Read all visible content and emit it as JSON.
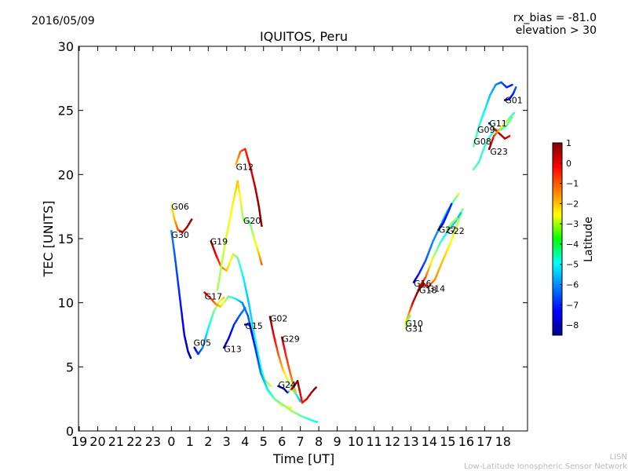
{
  "header": {
    "date": "2016/05/09",
    "rx_bias": "rx_bias = -81.0",
    "elevation": "elevation > 30"
  },
  "footer": {
    "org_short": "LISN",
    "org_long": "Low-Latitude Ionospheric Sensor Network"
  },
  "chart_data": {
    "type": "scatter",
    "title": "IQUITOS, Peru",
    "xlabel": "Time [UT]",
    "ylabel": "TEC [UNITS]",
    "x_start_hour": 19,
    "x_tick_labels": [
      "19",
      "20",
      "21",
      "22",
      "23",
      "0",
      "1",
      "2",
      "3",
      "4",
      "5",
      "6",
      "7",
      "8",
      "9",
      "10",
      "11",
      "12",
      "13",
      "14",
      "15",
      "16",
      "17",
      "18"
    ],
    "ylim": [
      0,
      30
    ],
    "y_ticks": [
      0,
      5,
      10,
      15,
      20,
      25,
      30
    ],
    "grid": false,
    "colorbar": {
      "label": "Latitude",
      "range": [
        -8.5,
        1
      ],
      "ticks": [
        1,
        0,
        -1,
        -2,
        -3,
        -4,
        -5,
        -6,
        -7,
        -8
      ],
      "tick_labels": [
        "1",
        "0",
        "−1",
        "−2",
        "−3",
        "−4",
        "−5",
        "−6",
        "−7",
        "−8"
      ]
    },
    "series": [
      {
        "name": "G06",
        "label_at": [
          0.0,
          17.5
        ],
        "points": [
          [
            0.0,
            17.6,
            -2.5
          ],
          [
            0.15,
            16.6,
            -2.0
          ],
          [
            0.35,
            15.7,
            -1.0
          ],
          [
            0.6,
            15.5,
            0.2
          ],
          [
            0.85,
            15.9,
            0.5
          ],
          [
            1.1,
            16.5,
            0.8
          ]
        ]
      },
      {
        "name": "G30",
        "label_at": [
          0.0,
          15.3
        ],
        "points": [
          [
            0.0,
            15.6,
            -6.0
          ],
          [
            0.2,
            13.5,
            -6.5
          ],
          [
            0.45,
            10.5,
            -7.0
          ],
          [
            0.7,
            7.5,
            -7.5
          ],
          [
            0.9,
            6.2,
            -8.0
          ],
          [
            1.05,
            5.7,
            -8.5
          ]
        ]
      },
      {
        "name": "G05",
        "label_at": [
          1.2,
          6.9
        ],
        "points": [
          [
            1.25,
            6.5,
            -7.5
          ],
          [
            1.45,
            6.0,
            -7.0
          ],
          [
            1.7,
            6.5,
            -6.0
          ],
          [
            2.0,
            8.0,
            -5.0
          ],
          [
            2.3,
            9.3,
            -4.0
          ],
          [
            2.55,
            10.0,
            -3.0
          ],
          [
            2.85,
            10.4,
            -2.0
          ]
        ]
      },
      {
        "name": "G13",
        "label_at": [
          2.85,
          6.4
        ],
        "points": [
          [
            2.85,
            6.5,
            -8.3
          ],
          [
            3.1,
            7.2,
            -7.5
          ],
          [
            3.4,
            8.3,
            -7.0
          ],
          [
            3.7,
            9.0,
            -6.5
          ],
          [
            4.0,
            9.6,
            -6.0
          ]
        ]
      },
      {
        "name": "G17",
        "label_at": [
          1.8,
          10.5
        ],
        "points": [
          [
            1.8,
            10.8,
            0.3
          ],
          [
            2.1,
            10.4,
            -0.5
          ],
          [
            2.4,
            9.9,
            -1.3
          ],
          [
            2.65,
            9.7,
            -2.0
          ],
          [
            2.9,
            10.1,
            -3.0
          ],
          [
            3.1,
            10.5,
            -4.0
          ],
          [
            3.5,
            10.3,
            -5.0
          ],
          [
            3.85,
            10.0,
            -6.0
          ],
          [
            4.15,
            9.0,
            -6.5
          ],
          [
            4.45,
            7.2,
            -6.0
          ],
          [
            4.75,
            5.2,
            -5.0
          ],
          [
            5.05,
            4.0,
            -4.0
          ],
          [
            5.4,
            3.5,
            -3.0
          ]
        ]
      },
      {
        "name": "G19",
        "label_at": [
          2.1,
          14.8
        ],
        "points": [
          [
            2.15,
            14.8,
            0.8
          ],
          [
            2.4,
            13.8,
            0.0
          ],
          [
            2.7,
            12.8,
            -1.0
          ],
          [
            3.0,
            12.5,
            -2.0
          ],
          [
            3.35,
            13.8,
            -3.0
          ],
          [
            3.6,
            13.5,
            -4.0
          ],
          [
            3.9,
            12.0,
            -5.0
          ],
          [
            4.2,
            10.0,
            -5.5
          ],
          [
            4.5,
            7.5,
            -5.0
          ],
          [
            4.85,
            5.0,
            -4.5
          ],
          [
            5.2,
            3.2,
            -4.0
          ],
          [
            5.6,
            2.5,
            -3.5
          ],
          [
            6.0,
            2.0,
            -3.0
          ],
          [
            6.5,
            1.8,
            -2.5
          ]
        ]
      },
      {
        "name": "G12",
        "label_at": [
          3.5,
          20.6
        ],
        "points": [
          [
            3.5,
            20.8,
            -2.0
          ],
          [
            3.75,
            21.8,
            -1.0
          ],
          [
            4.0,
            22.0,
            -0.5
          ],
          [
            4.3,
            20.5,
            0.0
          ],
          [
            4.55,
            19.0,
            0.5
          ],
          [
            4.75,
            17.5,
            0.8
          ],
          [
            4.9,
            16.0,
            1.0
          ]
        ]
      },
      {
        "name": "G20",
        "label_at": [
          3.9,
          16.4
        ],
        "points": [
          [
            2.5,
            11.0,
            -3.5
          ],
          [
            2.9,
            14.5,
            -3.0
          ],
          [
            3.3,
            17.5,
            -2.5
          ],
          [
            3.6,
            19.5,
            -2.0
          ],
          [
            3.9,
            16.5,
            -3.5
          ],
          [
            4.25,
            16.3,
            -4.0
          ],
          [
            4.5,
            15.0,
            -3.0
          ],
          [
            4.75,
            13.8,
            -2.0
          ],
          [
            4.9,
            13.0,
            -1.0
          ]
        ]
      },
      {
        "name": "G15",
        "label_at": [
          4.0,
          8.2
        ],
        "points": [
          [
            4.0,
            8.3,
            -8.0
          ],
          [
            4.25,
            8.3,
            -7.5
          ],
          [
            4.55,
            6.5,
            -7.0
          ],
          [
            4.85,
            4.5,
            -6.0
          ],
          [
            5.2,
            3.3,
            -5.0
          ],
          [
            5.6,
            2.5,
            -4.0
          ],
          [
            6.1,
            2.0,
            -3.5
          ],
          [
            6.6,
            1.5,
            -3.5
          ],
          [
            7.0,
            1.2,
            -4.0
          ],
          [
            7.5,
            0.9,
            -4.5
          ],
          [
            7.9,
            0.7,
            -5.0
          ]
        ]
      },
      {
        "name": "G02",
        "label_at": [
          5.35,
          8.8
        ],
        "points": [
          [
            5.35,
            8.9,
            1.0
          ],
          [
            5.55,
            7.5,
            0.0
          ],
          [
            5.8,
            6.0,
            -1.0
          ],
          [
            6.05,
            4.8,
            -2.0
          ],
          [
            6.3,
            4.0,
            -3.0
          ],
          [
            6.55,
            3.3,
            -4.0
          ],
          [
            6.8,
            2.8,
            -5.0
          ],
          [
            7.0,
            2.3,
            -5.5
          ]
        ]
      },
      {
        "name": "G29",
        "label_at": [
          6.0,
          7.2
        ],
        "points": [
          [
            6.0,
            7.3,
            0.5
          ],
          [
            6.2,
            6.0,
            -0.5
          ],
          [
            6.4,
            4.8,
            -1.0
          ],
          [
            6.6,
            3.7,
            -1.5
          ],
          [
            6.75,
            3.0,
            -2.0
          ]
        ]
      },
      {
        "name": "G24",
        "label_at": [
          5.8,
          3.6
        ],
        "points": [
          [
            5.8,
            3.5,
            -7.5
          ],
          [
            6.1,
            3.3,
            -8.0
          ],
          [
            6.3,
            3.0,
            -8.0
          ],
          [
            6.55,
            3.3,
            1.0
          ],
          [
            6.85,
            3.9,
            1.0
          ],
          [
            7.1,
            2.2,
            -0.5
          ],
          [
            7.35,
            2.5,
            0.0
          ],
          [
            7.6,
            3.0,
            0.5
          ],
          [
            7.85,
            3.4,
            1.0
          ]
        ]
      },
      {
        "name": "G10",
        "label_at": [
          12.7,
          8.4
        ],
        "points": [
          [
            12.7,
            8.4,
            -2.5
          ],
          [
            12.9,
            9.2,
            -1.5
          ],
          [
            13.1,
            10.0,
            0.0
          ],
          [
            13.35,
            10.8,
            0.8
          ],
          [
            13.55,
            11.3,
            1.0
          ]
        ]
      },
      {
        "name": "G31",
        "label_at": [
          12.7,
          8.0
        ],
        "points": [
          [
            12.7,
            8.0,
            -3.0
          ],
          [
            12.95,
            9.0,
            -4.0
          ]
        ]
      },
      {
        "name": "G16",
        "label_at": [
          13.15,
          11.5
        ],
        "points": [
          [
            13.15,
            11.6,
            -8.0
          ],
          [
            13.45,
            12.3,
            -7.0
          ],
          [
            13.8,
            13.3,
            -6.5
          ],
          [
            14.2,
            14.8,
            -6.0
          ],
          [
            14.6,
            16.0,
            -6.0
          ],
          [
            15.0,
            17.2,
            -5.5
          ],
          [
            15.35,
            18.0,
            -4.0
          ],
          [
            15.6,
            18.5,
            -3.0
          ]
        ]
      },
      {
        "name": "G14",
        "label_at": [
          13.9,
          11.1
        ],
        "points": [
          [
            13.4,
            11.0,
            1.0
          ],
          [
            13.7,
            11.5,
            0.5
          ],
          [
            13.9,
            11.2,
            -0.5
          ],
          [
            14.3,
            11.8,
            -1.5
          ],
          [
            14.7,
            13.2,
            -2.0
          ],
          [
            15.1,
            14.5,
            -2.5
          ],
          [
            15.5,
            16.0,
            -3.0
          ],
          [
            15.8,
            17.3,
            -4.0
          ]
        ]
      },
      {
        "name": "G18",
        "label_at": [
          13.45,
          11.0
        ],
        "points": [
          [
            13.45,
            11.2,
            0.8
          ],
          [
            13.8,
            12.0,
            -1.0
          ],
          [
            14.2,
            13.5,
            -3.0
          ],
          [
            14.6,
            14.7,
            -4.5
          ],
          [
            15.0,
            15.6,
            -5.0
          ],
          [
            15.4,
            16.3,
            -5.5
          ],
          [
            15.7,
            17.0,
            -5.5
          ]
        ]
      },
      {
        "name": "G27",
        "label_at": [
          14.5,
          15.7
        ],
        "points": [
          [
            14.5,
            15.7,
            -8.3
          ],
          [
            14.75,
            16.2,
            -7.5
          ],
          [
            15.0,
            17.0,
            -7.0
          ],
          [
            15.2,
            17.7,
            -7.0
          ]
        ]
      },
      {
        "name": "G22",
        "label_at": [
          14.95,
          15.6
        ],
        "points": [
          [
            14.95,
            15.7,
            -4.0
          ],
          [
            15.2,
            16.2,
            -3.5
          ],
          [
            15.5,
            16.6,
            -3.5
          ]
        ]
      },
      {
        "name": "G08",
        "label_at": [
          16.4,
          22.6
        ],
        "points": [
          [
            16.4,
            20.4,
            -4.0
          ],
          [
            16.7,
            21.0,
            -4.5
          ],
          [
            17.0,
            22.2,
            -4.5
          ],
          [
            17.3,
            23.0,
            -4.5
          ],
          [
            17.6,
            23.5,
            -4.5
          ],
          [
            17.9,
            23.5,
            -4.5
          ],
          [
            18.2,
            23.8,
            -4.0
          ],
          [
            18.5,
            24.5,
            -4.0
          ]
        ]
      },
      {
        "name": "G09",
        "label_at": [
          16.6,
          23.5
        ],
        "points": [
          [
            16.4,
            22.2,
            -4.0
          ],
          [
            16.7,
            23.8,
            -4.5
          ],
          [
            17.0,
            25.0,
            -5.0
          ],
          [
            17.3,
            26.2,
            -5.5
          ],
          [
            17.6,
            27.0,
            -6.0
          ],
          [
            17.9,
            27.2,
            -6.5
          ],
          [
            18.2,
            26.8,
            -7.0
          ],
          [
            18.5,
            27.0,
            -7.0
          ]
        ]
      },
      {
        "name": "G11",
        "label_at": [
          17.25,
          24.0
        ],
        "points": [
          [
            17.25,
            24.0,
            -8.0
          ],
          [
            17.5,
            23.6,
            0.0
          ],
          [
            17.8,
            23.2,
            0.5
          ],
          [
            18.1,
            22.8,
            0.5
          ],
          [
            18.35,
            23.0,
            0.0
          ]
        ]
      },
      {
        "name": "G23",
        "label_at": [
          17.3,
          21.8
        ],
        "points": [
          [
            17.25,
            22.0,
            1.0
          ],
          [
            17.5,
            23.0,
            -0.5
          ],
          [
            17.8,
            23.5,
            -2.0
          ],
          [
            18.1,
            24.0,
            -3.0
          ],
          [
            18.4,
            24.5,
            -4.0
          ],
          [
            18.6,
            24.8,
            -4.5
          ]
        ]
      },
      {
        "name": "G01",
        "label_at": [
          18.1,
          25.8
        ],
        "points": [
          [
            18.1,
            25.8,
            -8.3
          ],
          [
            18.35,
            25.9,
            -7.5
          ],
          [
            18.55,
            26.3,
            -7.0
          ],
          [
            18.7,
            26.8,
            -6.5
          ]
        ]
      }
    ]
  }
}
